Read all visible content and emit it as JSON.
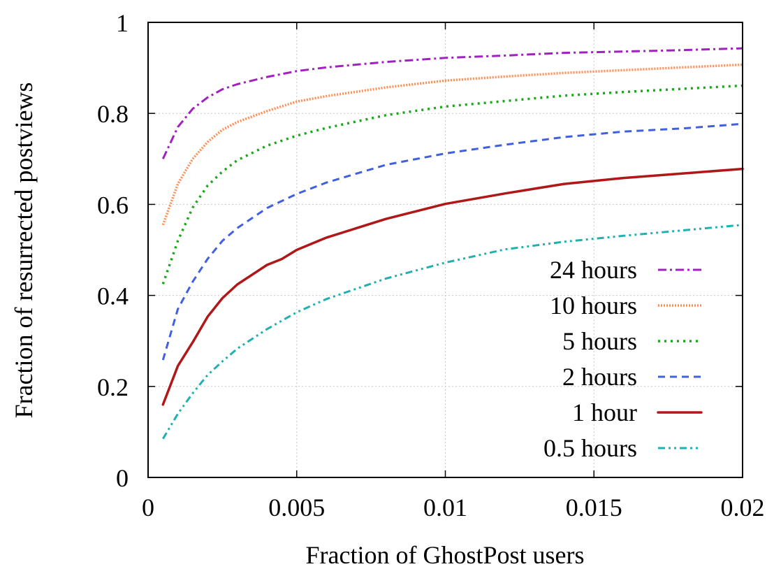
{
  "chart_data": {
    "type": "line",
    "title": "",
    "xlabel": "Fraction of GhostPost users",
    "ylabel": "Fraction of resurrected postviews",
    "xlim": [
      0,
      0.02
    ],
    "ylim": [
      0,
      1
    ],
    "grid": true,
    "legend_position": "bottom-right",
    "x_ticks": [
      0,
      0.005,
      0.01,
      0.015,
      0.02
    ],
    "x_tick_labels": [
      "0",
      "0.005",
      "0.01",
      "0.015",
      "0.02"
    ],
    "y_ticks": [
      0,
      0.2,
      0.4,
      0.6,
      0.8,
      1
    ],
    "y_tick_labels": [
      "0",
      "0.2",
      "0.4",
      "0.6",
      "0.8",
      "1"
    ],
    "series": [
      {
        "name": "24 hours",
        "color": "#a020c0",
        "dash": "dash-dot",
        "x": [
          0.0005,
          0.001,
          0.0015,
          0.002,
          0.0025,
          0.003,
          0.004,
          0.005,
          0.006,
          0.008,
          0.01,
          0.012,
          0.014,
          0.016,
          0.018,
          0.02
        ],
        "y": [
          0.7,
          0.77,
          0.81,
          0.835,
          0.853,
          0.864,
          0.88,
          0.893,
          0.901,
          0.913,
          0.922,
          0.927,
          0.933,
          0.936,
          0.939,
          0.943
        ]
      },
      {
        "name": "10 hours",
        "color": "#ff8c50",
        "dash": "dense-dot",
        "x": [
          0.0005,
          0.001,
          0.0015,
          0.002,
          0.0025,
          0.003,
          0.004,
          0.005,
          0.006,
          0.008,
          0.01,
          0.012,
          0.014,
          0.016,
          0.018,
          0.02
        ],
        "y": [
          0.555,
          0.645,
          0.7,
          0.737,
          0.764,
          0.781,
          0.805,
          0.826,
          0.838,
          0.857,
          0.872,
          0.881,
          0.889,
          0.895,
          0.901,
          0.907
        ]
      },
      {
        "name": "5 hours",
        "color": "#1aa81a",
        "dash": "dotted",
        "x": [
          0.0005,
          0.001,
          0.0015,
          0.002,
          0.0025,
          0.003,
          0.004,
          0.005,
          0.006,
          0.008,
          0.01,
          0.012,
          0.014,
          0.016,
          0.018,
          0.02
        ],
        "y": [
          0.425,
          0.52,
          0.593,
          0.641,
          0.672,
          0.697,
          0.729,
          0.751,
          0.768,
          0.796,
          0.815,
          0.827,
          0.839,
          0.847,
          0.854,
          0.861
        ]
      },
      {
        "name": "2 hours",
        "color": "#4060e0",
        "dash": "dashed",
        "x": [
          0.0005,
          0.001,
          0.0015,
          0.002,
          0.0025,
          0.003,
          0.004,
          0.005,
          0.006,
          0.008,
          0.01,
          0.012,
          0.014,
          0.016,
          0.018,
          0.02
        ],
        "y": [
          0.258,
          0.37,
          0.43,
          0.48,
          0.52,
          0.548,
          0.592,
          0.623,
          0.648,
          0.687,
          0.712,
          0.731,
          0.748,
          0.76,
          0.767,
          0.777
        ]
      },
      {
        "name": "1 hour",
        "color": "#b01818",
        "dash": "solid",
        "x": [
          0.0005,
          0.001,
          0.0015,
          0.002,
          0.0025,
          0.003,
          0.004,
          0.0045,
          0.005,
          0.006,
          0.008,
          0.01,
          0.012,
          0.014,
          0.016,
          0.018,
          0.02
        ],
        "y": [
          0.16,
          0.245,
          0.297,
          0.353,
          0.394,
          0.424,
          0.467,
          0.48,
          0.5,
          0.527,
          0.568,
          0.601,
          0.624,
          0.645,
          0.658,
          0.668,
          0.678
        ]
      },
      {
        "name": "0.5 hours",
        "color": "#20b0b0",
        "dash": "dash-dot-dot",
        "x": [
          0.0005,
          0.001,
          0.0015,
          0.002,
          0.0025,
          0.003,
          0.004,
          0.005,
          0.006,
          0.008,
          0.01,
          0.012,
          0.014,
          0.016,
          0.018,
          0.02
        ],
        "y": [
          0.085,
          0.14,
          0.185,
          0.225,
          0.255,
          0.283,
          0.326,
          0.363,
          0.392,
          0.437,
          0.472,
          0.501,
          0.518,
          0.531,
          0.543,
          0.555
        ]
      }
    ]
  }
}
